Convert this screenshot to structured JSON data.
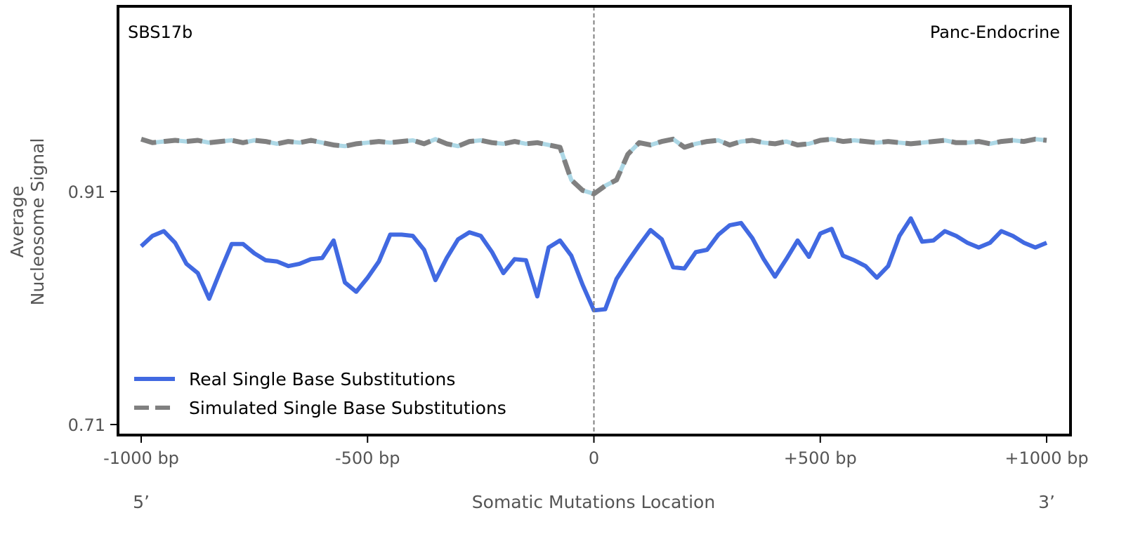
{
  "chart_data": {
    "type": "line",
    "title_left": "SBS17b",
    "title_right": "Panc-Endocrine",
    "xlabel": "Somatic Mutations Location",
    "ylabel_line1": "Average",
    "ylabel_line2": "Nucleosome Signal",
    "end_left": "5’",
    "end_right": "3’",
    "xlim": [
      -1000,
      1000
    ],
    "ylim": [
      0.7,
      1.07
    ],
    "x_ticks": [
      {
        "value": -1000,
        "label": "-1000 bp"
      },
      {
        "value": -500,
        "label": "-500 bp"
      },
      {
        "value": 0,
        "label": "0"
      },
      {
        "value": 500,
        "label": "+500 bp"
      },
      {
        "value": 1000,
        "label": "+1000 bp"
      }
    ],
    "y_ticks": [
      {
        "value": 0.91,
        "label": "0.91"
      },
      {
        "value": 0.71,
        "label": "0.71"
      }
    ],
    "legend_position": "bottom-left",
    "colors": {
      "real": "#4169e1",
      "simulated": "#808080",
      "simulated_underlay": "#add8e6",
      "center_line": "#808080",
      "frame": "#000000"
    },
    "series": [
      {
        "name": "Real Single Base Substitutions",
        "style": "solid",
        "x": [
          -1000,
          -975,
          -950,
          -925,
          -900,
          -875,
          -850,
          -825,
          -800,
          -775,
          -750,
          -725,
          -700,
          -675,
          -650,
          -625,
          -600,
          -575,
          -550,
          -525,
          -500,
          -475,
          -450,
          -425,
          -400,
          -375,
          -350,
          -325,
          -300,
          -275,
          -250,
          -225,
          -200,
          -175,
          -150,
          -125,
          -100,
          -75,
          -50,
          -25,
          0,
          25,
          50,
          75,
          100,
          125,
          150,
          175,
          200,
          225,
          250,
          275,
          300,
          325,
          350,
          375,
          400,
          425,
          450,
          475,
          500,
          525,
          550,
          575,
          600,
          625,
          650,
          675,
          700,
          725,
          750,
          775,
          800,
          825,
          850,
          875,
          900,
          925,
          950,
          975,
          1000
        ],
        "y": [
          0.863,
          0.872,
          0.876,
          0.866,
          0.848,
          0.84,
          0.818,
          0.842,
          0.865,
          0.865,
          0.857,
          0.851,
          0.85,
          0.846,
          0.848,
          0.852,
          0.853,
          0.868,
          0.832,
          0.824,
          0.836,
          0.85,
          0.873,
          0.873,
          0.872,
          0.86,
          0.834,
          0.853,
          0.869,
          0.875,
          0.872,
          0.858,
          0.84,
          0.852,
          0.851,
          0.82,
          0.862,
          0.868,
          0.855,
          0.83,
          0.808,
          0.809,
          0.835,
          0.85,
          0.864,
          0.877,
          0.869,
          0.845,
          0.844,
          0.858,
          0.86,
          0.873,
          0.881,
          0.883,
          0.87,
          0.852,
          0.837,
          0.852,
          0.868,
          0.854,
          0.874,
          0.878,
          0.855,
          0.851,
          0.846,
          0.836,
          0.846,
          0.872,
          0.887,
          0.867,
          0.868,
          0.876,
          0.872,
          0.866,
          0.862,
          0.866,
          0.876,
          0.872,
          0.866,
          0.862,
          0.866
        ]
      },
      {
        "name": "Simulated Single Base Substitutions",
        "style": "dashed",
        "x": [
          -1000,
          -975,
          -950,
          -925,
          -900,
          -875,
          -850,
          -825,
          -800,
          -775,
          -750,
          -725,
          -700,
          -675,
          -650,
          -625,
          -600,
          -575,
          -550,
          -525,
          -500,
          -475,
          -450,
          -425,
          -400,
          -375,
          -350,
          -325,
          -300,
          -275,
          -250,
          -225,
          -200,
          -175,
          -150,
          -125,
          -100,
          -75,
          -50,
          -25,
          0,
          25,
          50,
          75,
          100,
          125,
          150,
          175,
          200,
          225,
          250,
          275,
          300,
          325,
          350,
          375,
          400,
          425,
          450,
          475,
          500,
          525,
          550,
          575,
          600,
          625,
          650,
          675,
          700,
          725,
          750,
          775,
          800,
          825,
          850,
          875,
          900,
          925,
          950,
          975,
          1000
        ],
        "y": [
          0.955,
          0.952,
          0.953,
          0.954,
          0.953,
          0.954,
          0.952,
          0.953,
          0.954,
          0.952,
          0.954,
          0.953,
          0.951,
          0.953,
          0.952,
          0.954,
          0.952,
          0.95,
          0.949,
          0.951,
          0.952,
          0.953,
          0.952,
          0.953,
          0.954,
          0.951,
          0.955,
          0.951,
          0.949,
          0.953,
          0.954,
          0.952,
          0.951,
          0.953,
          0.951,
          0.952,
          0.95,
          0.948,
          0.92,
          0.911,
          0.908,
          0.915,
          0.92,
          0.942,
          0.952,
          0.95,
          0.953,
          0.955,
          0.948,
          0.951,
          0.953,
          0.954,
          0.95,
          0.953,
          0.954,
          0.952,
          0.951,
          0.953,
          0.95,
          0.951,
          0.954,
          0.955,
          0.953,
          0.954,
          0.953,
          0.952,
          0.953,
          0.952,
          0.951,
          0.952,
          0.953,
          0.954,
          0.952,
          0.952,
          0.953,
          0.951,
          0.953,
          0.954,
          0.953,
          0.955,
          0.954
        ]
      }
    ]
  }
}
